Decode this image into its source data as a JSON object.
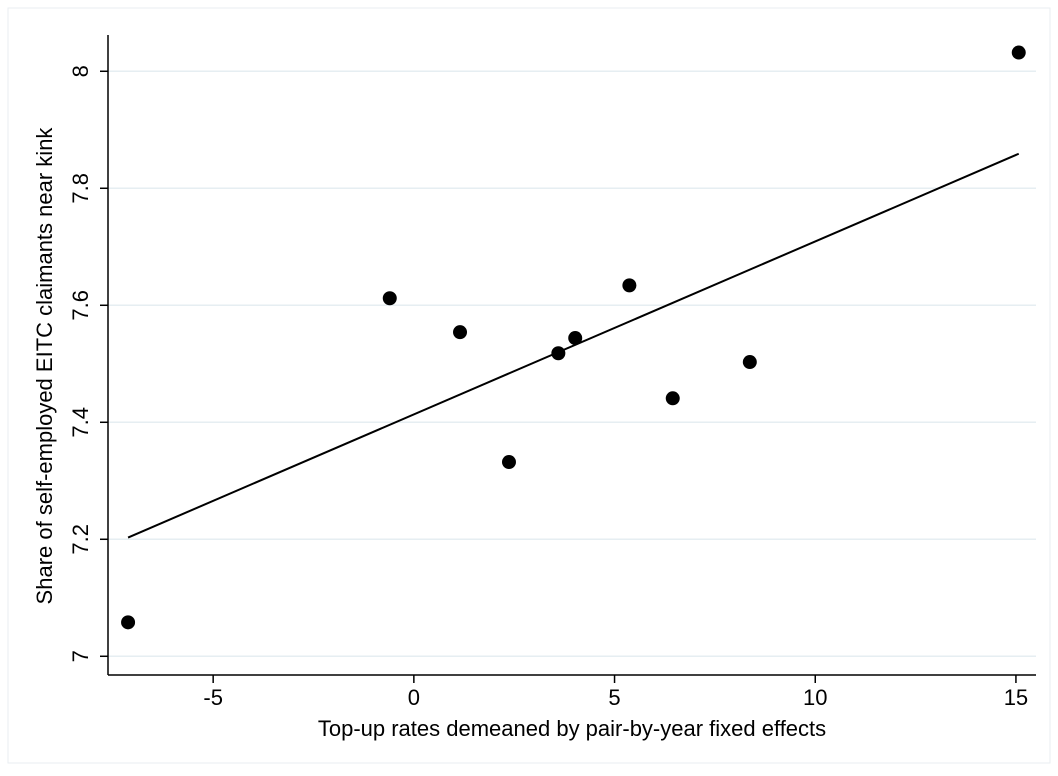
{
  "chart_data": {
    "type": "scatter",
    "x_label": "Top-up rates demeaned by pair-by-year fixed effects",
    "y_label": "Share of self-employed EITC claimants near kink",
    "x": [
      -7.12,
      -0.6,
      1.15,
      2.37,
      3.6,
      4.02,
      5.37,
      6.45,
      8.37,
      15.07
    ],
    "values": [
      7.058,
      7.612,
      7.554,
      7.332,
      7.518,
      7.544,
      7.634,
      7.441,
      7.503,
      8.032
    ],
    "color": "#000000",
    "fit_line": {
      "x": [
        -7.12,
        15.07
      ],
      "values": [
        7.203,
        7.859
      ],
      "color": "#000000"
    },
    "xlim": [
      -7.62,
      15.5
    ],
    "xticks": [
      -5,
      0,
      5,
      10,
      15
    ],
    "ylim": [
      6.968,
      8.062
    ],
    "yticks": [
      7,
      7.2,
      7.4,
      7.6,
      7.8,
      8
    ],
    "grid": true
  }
}
